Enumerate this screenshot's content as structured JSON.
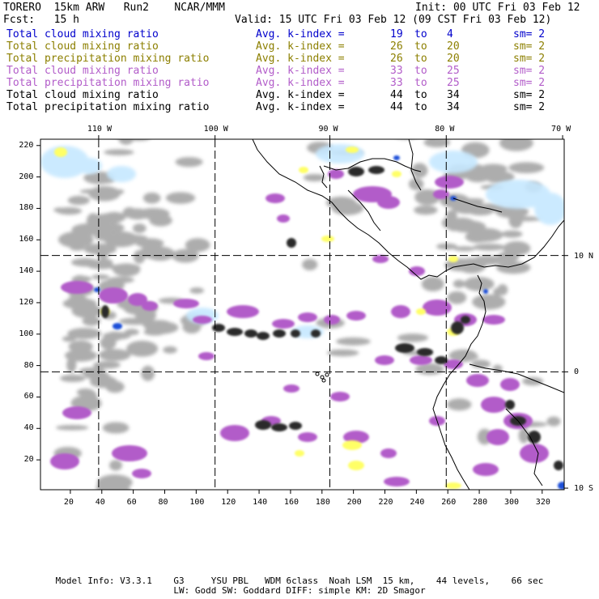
{
  "header": {
    "left1": "TORERO  15km ARW   Run2    NCAR/MMM",
    "left2": "Fcst:   15 h",
    "init": "Init: 00 UTC Fri 03 Feb 12",
    "valid": "Valid: 15 UTC Fri 03 Feb 12 (09 CST Fri 03 Feb 12)"
  },
  "legend": [
    {
      "field": "Total cloud mixing ratio",
      "avg": "Avg. k-index =",
      "from": "19",
      "to": "to",
      "end": "4",
      "sm": "sm= 2",
      "color": "#0000cc"
    },
    {
      "field": "Total cloud mixing ratio",
      "avg": "Avg. k-index =",
      "from": "26",
      "to": "to",
      "end": "20",
      "sm": "sm= 2",
      "color": "#8c7f00"
    },
    {
      "field": "Total precipitation mixing ratio",
      "avg": "Avg. k-index =",
      "from": "26",
      "to": "to",
      "end": "20",
      "sm": "sm= 2",
      "color": "#8c7f00"
    },
    {
      "field": "Total cloud mixing ratio",
      "avg": "Avg. k-index =",
      "from": "33",
      "to": "to",
      "end": "25",
      "sm": "sm= 2",
      "color": "#b25cc9"
    },
    {
      "field": "Total precipitation mixing ratio",
      "avg": "Avg. k-index =",
      "from": "33",
      "to": "to",
      "end": "25",
      "sm": "sm= 2",
      "color": "#b25cc9"
    },
    {
      "field": "Total cloud mixing ratio",
      "avg": "Avg. k-index =",
      "from": "44",
      "to": "to",
      "end": "34",
      "sm": "sm= 2",
      "color": "#000000"
    },
    {
      "field": "Total precipitation mixing ratio",
      "avg": "Avg. k-index =",
      "from": "44",
      "to": "to",
      "end": "34",
      "sm": "sm= 2",
      "color": "#000000"
    }
  ],
  "map": {
    "lon_labels": [
      {
        "text": "110 W",
        "x": 38
      },
      {
        "text": "100 W",
        "x": 112
      },
      {
        "text": "90 W",
        "x": 185
      },
      {
        "text": "80 W",
        "x": 259
      },
      {
        "text": "70 W",
        "x": 333
      }
    ],
    "lat_labels": [
      {
        "text": "10 N",
        "y": 150
      },
      {
        "text": "0",
        "y": 76
      },
      {
        "text": "10 S",
        "y": 2
      }
    ],
    "x_ticks": [
      20,
      40,
      60,
      80,
      100,
      120,
      140,
      160,
      180,
      200,
      220,
      240,
      260,
      280,
      300,
      320
    ],
    "y_ticks": [
      20,
      40,
      60,
      80,
      100,
      120,
      140,
      160,
      180,
      200,
      220
    ],
    "grid_x": [
      38,
      112,
      185,
      259
    ],
    "grid_y": [
      150,
      76
    ],
    "x_range": [
      1,
      334
    ],
    "y_range": [
      1,
      224
    ],
    "colors": {
      "gray_cloud": "#a9a9a9",
      "dark_core": "#2a2a2a",
      "purple": "#b25cc9",
      "yellow": "#ffff66",
      "light_blue": "#c6e8ff",
      "blue": "#1e4fd8"
    }
  },
  "footer": {
    "line1": "Model Info: V3.3.1    G3     YSU PBL   WDM 6class  Noah LSM  15 km,    44 levels,    66 sec",
    "line2": "LW: Godd SW: Goddard DIFF: simple KM: 2D Smagor"
  }
}
